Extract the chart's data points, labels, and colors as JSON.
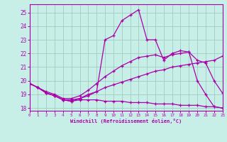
{
  "background_color": "#c8eee8",
  "grid_color": "#a0ccc0",
  "line_color": "#aa00aa",
  "xlabel": "Windchill (Refroidissement éolien,°C)",
  "xlim": [
    0,
    23
  ],
  "ylim": [
    17.8,
    25.6
  ],
  "x_ticks": [
    0,
    1,
    2,
    3,
    4,
    5,
    6,
    7,
    8,
    9,
    10,
    11,
    12,
    13,
    14,
    15,
    16,
    17,
    18,
    19,
    20,
    21,
    22,
    23
  ],
  "y_ticks": [
    18,
    19,
    20,
    21,
    22,
    23,
    24,
    25
  ],
  "series": [
    {
      "x": [
        0,
        1,
        2,
        3,
        4,
        5,
        6,
        7,
        8,
        9,
        10,
        11,
        12,
        13,
        14,
        15,
        16,
        17,
        18,
        19,
        20,
        21,
        22,
        23
      ],
      "y": [
        19.8,
        19.5,
        19.1,
        18.9,
        18.6,
        18.5,
        18.6,
        18.6,
        18.6,
        18.5,
        18.5,
        18.5,
        18.4,
        18.4,
        18.4,
        18.3,
        18.3,
        18.3,
        18.2,
        18.2,
        18.2,
        18.1,
        18.1,
        18.0
      ]
    },
    {
      "x": [
        0,
        1,
        2,
        3,
        4,
        5,
        6,
        7,
        8,
        9,
        10,
        11,
        12,
        13,
        14,
        15,
        16,
        17,
        18,
        19,
        20,
        21,
        22,
        23
      ],
      "y": [
        19.8,
        19.5,
        19.1,
        18.9,
        18.6,
        18.6,
        18.7,
        18.9,
        19.2,
        19.5,
        19.7,
        19.9,
        20.1,
        20.3,
        20.5,
        20.7,
        20.8,
        21.0,
        21.1,
        21.2,
        21.3,
        21.4,
        21.5,
        21.8
      ]
    },
    {
      "x": [
        0,
        1,
        2,
        3,
        4,
        5,
        6,
        7,
        8,
        9,
        10,
        11,
        12,
        13,
        14,
        15,
        16,
        17,
        18,
        19,
        20,
        21,
        22,
        23
      ],
      "y": [
        19.8,
        19.5,
        19.2,
        19.0,
        18.7,
        18.7,
        18.9,
        19.3,
        19.8,
        20.3,
        20.7,
        21.1,
        21.4,
        21.7,
        21.8,
        21.9,
        21.7,
        21.9,
        22.0,
        22.1,
        21.5,
        21.3,
        20.0,
        19.1
      ]
    },
    {
      "comment": "Top line: starts ~19.8, dips, then jumps steeply: x=9->23, x=10->23.3, x=11->24.4, x=12->24.8, x=13->25.2(peak), x=14->23, x=15->23, x=16->21.5, x=17->22.0, x=18->22.2, x=19->22.1, x=20->20, x=21->19, x=22->18.1, x=23->18.0",
      "x": [
        0,
        1,
        2,
        3,
        4,
        5,
        6,
        7,
        8,
        9,
        10,
        11,
        12,
        13,
        14,
        15,
        16,
        17,
        18,
        19,
        20,
        21,
        22,
        23
      ],
      "y": [
        19.8,
        19.5,
        19.1,
        18.9,
        18.6,
        18.5,
        18.7,
        19.0,
        19.2,
        23.0,
        23.3,
        24.4,
        24.8,
        25.2,
        23.0,
        23.0,
        21.5,
        22.0,
        22.2,
        22.1,
        20.0,
        19.0,
        18.1,
        18.0
      ]
    }
  ]
}
